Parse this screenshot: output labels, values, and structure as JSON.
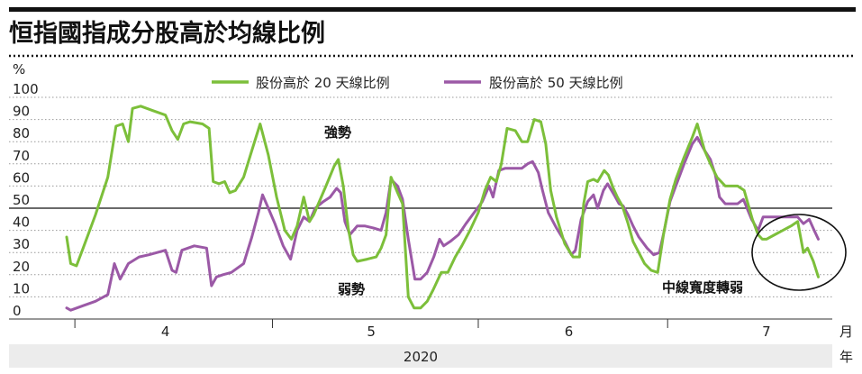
{
  "title": "恒指國指成分股高於均線比例",
  "colors": {
    "series20": "#7cbf3a",
    "series50": "#9b59a6",
    "text": "#222222",
    "grid": "#999999",
    "yearBand": "#ececec"
  },
  "chart_data": {
    "type": "line",
    "title": "恒指國指成分股高於均線比例",
    "ylabel": "%",
    "xlabel": "月",
    "year_label": "2020",
    "year_unit": "年",
    "ylim": [
      0,
      100
    ],
    "xlim": [
      0,
      100
    ],
    "yticks": [
      "0",
      "10",
      "20",
      "30",
      "40",
      "50",
      "60",
      "70",
      "80",
      "90",
      "100"
    ],
    "months": [
      {
        "label": "4",
        "at": 19
      },
      {
        "label": "5",
        "at": 44
      },
      {
        "label": "6",
        "at": 68
      },
      {
        "label": "7",
        "at": 92
      }
    ],
    "month_separators": [
      8,
      32,
      57,
      80
    ],
    "reference_line": 50,
    "legend": [
      "股份高於 20 天線比例",
      "股份高於 50 天線比例"
    ],
    "annotations": {
      "strong": "強勢",
      "weak": "弱勢",
      "mid": "中線寬度轉弱"
    },
    "series": [
      {
        "name": "股份高於 20 天線比例",
        "points": [
          [
            7,
            37
          ],
          [
            7.5,
            25
          ],
          [
            8.2,
            24
          ],
          [
            9,
            32
          ],
          [
            10.5,
            47
          ],
          [
            12,
            64
          ],
          [
            13,
            87
          ],
          [
            13.8,
            88
          ],
          [
            14.5,
            80
          ],
          [
            15,
            95
          ],
          [
            16,
            96
          ],
          [
            17.5,
            94
          ],
          [
            19,
            92
          ],
          [
            19.8,
            85
          ],
          [
            20.5,
            81
          ],
          [
            21.2,
            88
          ],
          [
            22,
            89
          ],
          [
            23.5,
            88
          ],
          [
            24.3,
            86
          ],
          [
            24.8,
            62
          ],
          [
            25.5,
            61
          ],
          [
            26.2,
            62
          ],
          [
            26.8,
            57
          ],
          [
            27.5,
            58
          ],
          [
            28.5,
            64
          ],
          [
            29.5,
            76
          ],
          [
            30.5,
            88
          ],
          [
            31.5,
            74
          ],
          [
            32.5,
            55
          ],
          [
            33.5,
            40
          ],
          [
            34.3,
            36
          ],
          [
            35,
            42
          ],
          [
            35.8,
            55
          ],
          [
            36.5,
            44
          ],
          [
            37,
            47
          ],
          [
            38.5,
            60
          ],
          [
            39.5,
            69
          ],
          [
            40,
            72
          ],
          [
            40.6,
            60
          ],
          [
            41.2,
            41
          ],
          [
            41.8,
            29
          ],
          [
            42.3,
            26
          ],
          [
            43.5,
            27
          ],
          [
            44.6,
            28
          ],
          [
            45.2,
            32
          ],
          [
            45.8,
            38
          ],
          [
            46.4,
            64
          ],
          [
            47.2,
            57
          ],
          [
            47.8,
            52
          ],
          [
            48.5,
            10
          ],
          [
            49.2,
            5
          ],
          [
            50,
            5
          ],
          [
            50.8,
            8
          ],
          [
            51.5,
            13
          ],
          [
            52.5,
            21
          ],
          [
            53.3,
            21
          ],
          [
            54.2,
            28
          ],
          [
            55,
            33
          ],
          [
            56,
            40
          ],
          [
            57,
            48
          ],
          [
            57.8,
            58
          ],
          [
            58.5,
            64
          ],
          [
            59.2,
            62
          ],
          [
            59.8,
            70
          ],
          [
            60.5,
            86
          ],
          [
            61.5,
            85
          ],
          [
            62.3,
            80
          ],
          [
            63,
            80
          ],
          [
            63.8,
            90
          ],
          [
            64.6,
            89
          ],
          [
            65.2,
            79
          ],
          [
            65.8,
            58
          ],
          [
            66.5,
            46
          ],
          [
            67.5,
            34
          ],
          [
            68.5,
            28
          ],
          [
            69.3,
            28
          ],
          [
            69.8,
            52
          ],
          [
            70.3,
            62
          ],
          [
            71,
            63
          ],
          [
            71.5,
            62
          ],
          [
            72.3,
            67
          ],
          [
            72.8,
            65
          ],
          [
            73.4,
            59
          ],
          [
            73.9,
            55
          ],
          [
            74.5,
            51
          ],
          [
            75.2,
            43
          ],
          [
            75.8,
            35
          ],
          [
            76.5,
            30
          ],
          [
            77.2,
            25
          ],
          [
            78,
            22
          ],
          [
            78.8,
            21
          ],
          [
            79.5,
            38
          ],
          [
            80.3,
            54
          ],
          [
            81,
            63
          ],
          [
            82,
            73
          ],
          [
            83,
            82
          ],
          [
            83.6,
            88
          ],
          [
            84.5,
            76
          ],
          [
            85.2,
            70
          ],
          [
            86,
            64
          ],
          [
            87,
            60
          ],
          [
            88.5,
            60
          ],
          [
            89.3,
            58
          ],
          [
            90.3,
            45
          ],
          [
            91,
            38
          ],
          [
            91.5,
            36
          ],
          [
            92,
            36
          ],
          [
            93,
            38
          ],
          [
            94,
            40
          ],
          [
            95,
            42
          ],
          [
            95.8,
            44
          ],
          [
            96.5,
            30
          ],
          [
            97,
            32
          ],
          [
            97.7,
            26
          ],
          [
            98.3,
            19
          ]
        ]
      },
      {
        "name": "股份高於 50 天線比例",
        "points": [
          [
            7,
            5
          ],
          [
            7.5,
            4
          ],
          [
            9,
            6
          ],
          [
            10.5,
            8
          ],
          [
            12,
            11
          ],
          [
            12.8,
            25
          ],
          [
            13.5,
            18
          ],
          [
            14.5,
            25
          ],
          [
            15.8,
            28
          ],
          [
            17,
            29
          ],
          [
            18,
            30
          ],
          [
            19,
            31
          ],
          [
            19.8,
            22
          ],
          [
            20.3,
            21
          ],
          [
            21,
            31
          ],
          [
            22.5,
            33
          ],
          [
            24,
            32
          ],
          [
            24.6,
            15
          ],
          [
            25.2,
            19
          ],
          [
            26,
            20
          ],
          [
            27,
            21
          ],
          [
            28.5,
            25
          ],
          [
            29.5,
            37
          ],
          [
            30.3,
            48
          ],
          [
            30.8,
            56
          ],
          [
            31.5,
            50
          ],
          [
            32.3,
            43
          ],
          [
            33.3,
            33
          ],
          [
            34.2,
            27
          ],
          [
            35,
            40
          ],
          [
            35.8,
            46
          ],
          [
            36.5,
            44
          ],
          [
            37.2,
            50
          ],
          [
            38.2,
            53
          ],
          [
            39,
            55
          ],
          [
            39.8,
            59
          ],
          [
            40.3,
            57
          ],
          [
            40.8,
            44
          ],
          [
            41.4,
            38
          ],
          [
            42.3,
            42
          ],
          [
            43.2,
            42
          ],
          [
            44.3,
            41
          ],
          [
            45.2,
            40
          ],
          [
            45.8,
            48
          ],
          [
            46.4,
            63
          ],
          [
            47.2,
            60
          ],
          [
            47.8,
            54
          ],
          [
            48.5,
            36
          ],
          [
            49.3,
            18
          ],
          [
            50,
            18
          ],
          [
            50.8,
            21
          ],
          [
            51.6,
            28
          ],
          [
            52.3,
            36
          ],
          [
            52.8,
            33
          ],
          [
            53.6,
            35
          ],
          [
            54.6,
            38
          ],
          [
            55.5,
            43
          ],
          [
            56.5,
            48
          ],
          [
            57.5,
            53
          ],
          [
            58.3,
            60
          ],
          [
            58.8,
            55
          ],
          [
            59.5,
            67
          ],
          [
            60.3,
            68
          ],
          [
            61.3,
            68
          ],
          [
            62.3,
            68
          ],
          [
            63,
            70
          ],
          [
            63.6,
            71
          ],
          [
            64.3,
            66
          ],
          [
            64.8,
            58
          ],
          [
            65.5,
            48
          ],
          [
            66.5,
            41
          ],
          [
            67.5,
            35
          ],
          [
            68.3,
            29
          ],
          [
            68.8,
            31
          ],
          [
            69.5,
            45
          ],
          [
            70.3,
            53
          ],
          [
            71,
            56
          ],
          [
            71.5,
            50
          ],
          [
            72.2,
            58
          ],
          [
            72.7,
            61
          ],
          [
            73.5,
            56
          ],
          [
            74.1,
            52
          ],
          [
            74.6,
            51
          ],
          [
            75.2,
            47
          ],
          [
            75.8,
            42
          ],
          [
            76.5,
            37
          ],
          [
            77.5,
            32
          ],
          [
            78.3,
            29
          ],
          [
            79,
            30
          ],
          [
            79.6,
            40
          ],
          [
            80.3,
            53
          ],
          [
            81,
            60
          ],
          [
            82,
            70
          ],
          [
            83,
            79
          ],
          [
            83.6,
            82
          ],
          [
            84.5,
            76
          ],
          [
            85.2,
            72
          ],
          [
            85.8,
            65
          ],
          [
            86.3,
            55
          ],
          [
            87,
            52
          ],
          [
            88.5,
            52
          ],
          [
            89.2,
            54
          ],
          [
            90.2,
            45
          ],
          [
            91,
            40
          ],
          [
            91.6,
            46
          ],
          [
            92.5,
            46
          ],
          [
            94.5,
            46
          ],
          [
            95.8,
            46
          ],
          [
            96.5,
            43
          ],
          [
            97.2,
            45
          ],
          [
            97.8,
            40
          ],
          [
            98.3,
            36
          ]
        ]
      }
    ]
  }
}
